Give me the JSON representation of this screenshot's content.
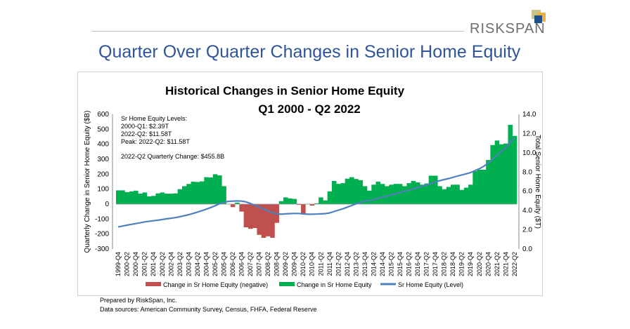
{
  "header": {
    "logo_text": "RISKSPAN",
    "page_title": "Quarter Over Quarter Changes in Senior Home Equity"
  },
  "footer": {
    "prepared_by": "Prepared by RiskSpan, Inc.",
    "sources": "Data sources: American Community Survey, Census, FHFA, Federal Reserve"
  },
  "colors": {
    "positive": "#00b050",
    "negative": "#c0504d",
    "line": "#4f81bd",
    "title": "#2e5597"
  },
  "chart_data": {
    "type": "bar+line",
    "title": [
      "Historical Changes in Senior Home Equity",
      "Q1 2000 - Q2 2022"
    ],
    "ylabel": "Quarterly Change in Senior Home Equity ($B)",
    "y2label": "Total Senior Home Equity ($T)",
    "ylim": [
      -300,
      600
    ],
    "y2lim": [
      0,
      14
    ],
    "yticks": [
      "600",
      "500",
      "400",
      "300",
      "200",
      "100",
      "0",
      "-100",
      "-200",
      "-300"
    ],
    "y2ticks": [
      "14.0",
      "12.0",
      "10.0",
      "8.0",
      "6.0",
      "4.0",
      "2.0",
      "0.0"
    ],
    "annotations": [
      "Sr Home Equity Levels:",
      "2000-Q1: $2.39T",
      "2022-Q2: $11.58T",
      "Peak: 2022-Q2: $11.58T",
      "2022-Q2 Quarterly Change: $455.8B"
    ],
    "legend": [
      "Change in Sr Home Equity (negative)",
      "Change in Sr Home Equity",
      "Sr Home Equity (Level)"
    ],
    "legend_position": "bottom",
    "start_quarter": "1999-Q4",
    "x_tick_labels": [
      "1999-Q4",
      "2000-Q2",
      "2000-Q4",
      "2001-Q2",
      "2001-Q4",
      "2002-Q2",
      "2002-Q4",
      "2003-Q2",
      "2003-Q4",
      "2004-Q2",
      "2004-Q4",
      "2005-Q2",
      "2005-Q4",
      "2006-Q2",
      "2006-Q4",
      "2007-Q2",
      "2007-Q4",
      "2008-Q2",
      "2008-Q4",
      "2009-Q2",
      "2009-Q4",
      "2010-Q2",
      "2010-Q4",
      "2011-Q2",
      "2011-Q4",
      "2012-Q2",
      "2012-Q4",
      "2013-Q2",
      "2013-Q4",
      "2014-Q2",
      "2014-Q4",
      "2015-Q2",
      "2015-Q4",
      "2016-Q2",
      "2016-Q4",
      "2017-Q2",
      "2017-Q4",
      "2018-Q2",
      "2018-Q4",
      "2019-Q2",
      "2019-Q4",
      "2020-Q2",
      "2020-Q4",
      "2021-Q2",
      "2021-Q4",
      "2022-Q2"
    ],
    "change_billions": [
      92,
      92,
      80,
      85,
      90,
      70,
      78,
      52,
      55,
      72,
      78,
      70,
      70,
      72,
      100,
      120,
      135,
      150,
      148,
      152,
      180,
      178,
      200,
      192,
      120,
      2,
      -20,
      10,
      -50,
      -155,
      -165,
      -160,
      -205,
      -225,
      -215,
      -225,
      -125,
      20,
      45,
      38,
      35,
      -5,
      -70,
      2,
      -10,
      5,
      45,
      25,
      85,
      155,
      135,
      140,
      170,
      180,
      168,
      160,
      120,
      90,
      130,
      150,
      135,
      120,
      130,
      135,
      135,
      120,
      140,
      155,
      145,
      130,
      138,
      190,
      190,
      120,
      100,
      115,
      130,
      130,
      95,
      110,
      130,
      220,
      230,
      230,
      295,
      395,
      425,
      400,
      405,
      530,
      456
    ],
    "level_trillions": [
      2.3,
      2.39,
      2.48,
      2.57,
      2.65,
      2.73,
      2.82,
      2.88,
      2.94,
      3.0,
      3.07,
      3.14,
      3.2,
      3.27,
      3.36,
      3.46,
      3.57,
      3.7,
      3.84,
      3.99,
      4.14,
      4.32,
      4.5,
      4.7,
      4.85,
      4.95,
      4.98,
      5.0,
      4.98,
      4.9,
      4.75,
      4.55,
      4.35,
      4.15,
      3.95,
      3.78,
      3.65,
      3.62,
      3.65,
      3.68,
      3.7,
      3.7,
      3.65,
      3.62,
      3.62,
      3.63,
      3.65,
      3.68,
      3.75,
      3.9,
      4.05,
      4.18,
      4.35,
      4.52,
      4.7,
      4.85,
      4.98,
      5.05,
      5.15,
      5.28,
      5.4,
      5.5,
      5.62,
      5.75,
      5.88,
      6.0,
      6.12,
      6.25,
      6.4,
      6.52,
      6.65,
      6.8,
      6.98,
      7.1,
      7.22,
      7.33,
      7.45,
      7.58,
      7.7,
      7.82,
      7.95,
      8.15,
      8.35,
      8.6,
      8.95,
      9.35,
      9.75,
      10.15,
      10.55,
      11.1,
      11.58
    ]
  }
}
